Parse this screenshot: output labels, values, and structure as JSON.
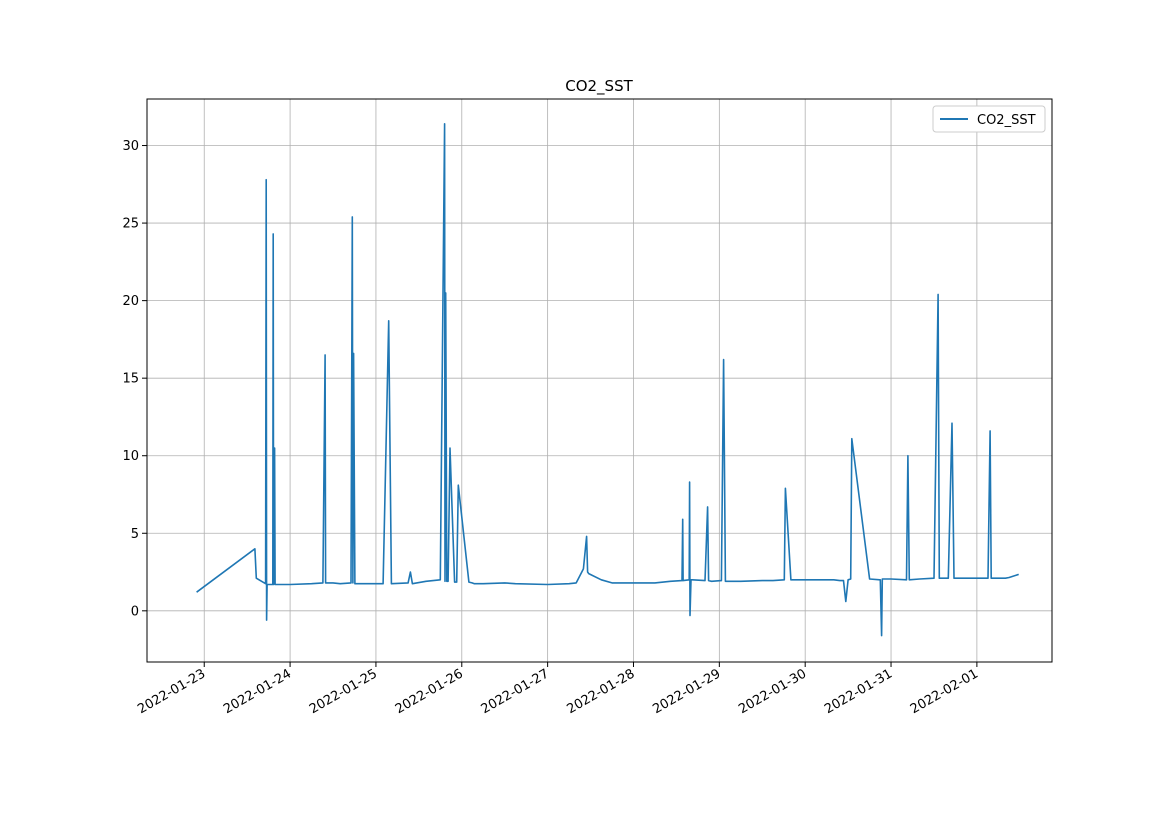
{
  "chart_data": {
    "type": "line",
    "title": "CO2_SST",
    "xlabel": "",
    "ylabel": "",
    "x_axis_type": "date",
    "xlim": [
      "2022-01-22T08:00",
      "2022-02-01T21:00"
    ],
    "ylim": [
      -3.3,
      33.0
    ],
    "x_ticks": [
      "2022-01-23",
      "2022-01-24",
      "2022-01-25",
      "2022-01-26",
      "2022-01-27",
      "2022-01-28",
      "2022-01-29",
      "2022-01-30",
      "2022-01-31",
      "2022-02-01"
    ],
    "y_ticks": [
      0,
      5,
      10,
      15,
      20,
      25,
      30
    ],
    "grid": true,
    "legend": {
      "position": "top-right",
      "entries": [
        "CO2_SST"
      ]
    },
    "series": [
      {
        "name": "CO2_SST",
        "color": "#1f77b4",
        "x": [
          "2022-01-22T21:52",
          "2022-01-23T14:10",
          "2022-01-23T14:34",
          "2022-01-23T17:10",
          "2022-01-23T17:19",
          "2022-01-23T17:26",
          "2022-01-23T17:34",
          "2022-01-23T19:10",
          "2022-01-23T19:17",
          "2022-01-23T19:24",
          "2022-01-23T19:41",
          "2022-01-23T19:48",
          "2022-01-23T19:55",
          "2022-01-24T00:00",
          "2022-01-24T06:00",
          "2022-01-24T09:10",
          "2022-01-24T09:48",
          "2022-01-24T09:55",
          "2022-01-24T10:38",
          "2022-01-24T12:00",
          "2022-01-24T14:00",
          "2022-01-24T17:02",
          "2022-01-24T17:24",
          "2022-01-24T17:34",
          "2022-01-24T17:46",
          "2022-01-24T18:07",
          "2022-01-24T22:00",
          "2022-01-25T02:00",
          "2022-01-25T03:34",
          "2022-01-25T04:19",
          "2022-01-25T09:00",
          "2022-01-25T09:38",
          "2022-01-25T10:12",
          "2022-01-25T14:00",
          "2022-01-25T18:00",
          "2022-01-25T19:12",
          "2022-01-25T19:19",
          "2022-01-25T19:31",
          "2022-01-25T19:48",
          "2022-01-25T20:00",
          "2022-01-25T20:10",
          "2022-01-25T20:43",
          "2022-01-25T22:00",
          "2022-01-25T22:34",
          "2022-01-25T23:02",
          "2022-01-26T02:00",
          "2022-01-26T02:53",
          "2022-01-26T03:31",
          "2022-01-26T06:00",
          "2022-01-26T12:00",
          "2022-01-26T15:00",
          "2022-01-27T00:00",
          "2022-01-27T06:00",
          "2022-01-27T08:00",
          "2022-01-27T10:00",
          "2022-01-27T10:53",
          "2022-01-27T11:10",
          "2022-01-27T11:29",
          "2022-01-27T15:00",
          "2022-01-27T18:00",
          "2022-01-27T21:31",
          "2022-01-28T06:00",
          "2022-01-28T10:19",
          "2022-01-28T13:34",
          "2022-01-28T13:46",
          "2022-01-28T13:53",
          "2022-01-28T15:34",
          "2022-01-28T15:41",
          "2022-01-28T15:48",
          "2022-01-28T16:05",
          "2022-01-28T16:29",
          "2022-01-28T20:00",
          "2022-01-28T20:43",
          "2022-01-28T21:00",
          "2022-01-28T21:50",
          "2022-01-29T00:34",
          "2022-01-29T01:12",
          "2022-01-29T01:41",
          "2022-01-29T06:00",
          "2022-01-29T12:00",
          "2022-01-29T15:00",
          "2022-01-29T18:10",
          "2022-01-29T18:29",
          "2022-01-29T20:00",
          "2022-01-30T00:00",
          "2022-01-30T06:00",
          "2022-01-30T08:00",
          "2022-01-30T09:41",
          "2022-01-30T10:43",
          "2022-01-30T11:22",
          "2022-01-30T12:00",
          "2022-01-30T12:43",
          "2022-01-30T13:02",
          "2022-01-30T18:00",
          "2022-01-30T20:53",
          "2022-01-30T21:00",
          "2022-01-30T21:22",
          "2022-01-30T21:34",
          "2022-01-31T00:00",
          "2022-01-31T04:19",
          "2022-01-31T04:43",
          "2022-01-31T05:07",
          "2022-01-31T08:00",
          "2022-01-31T12:00",
          "2022-01-31T13:10",
          "2022-01-31T13:29",
          "2022-01-31T13:48",
          "2022-01-31T16:00",
          "2022-01-31T17:02",
          "2022-01-31T17:36",
          "2022-01-31T20:00",
          "2022-02-01T02:00",
          "2022-02-01T03:07",
          "2022-02-01T03:41",
          "2022-02-01T04:00",
          "2022-02-01T08:00",
          "2022-02-01T09:00",
          "2022-02-01T11:41"
        ],
        "y": [
          1.2,
          4.0,
          2.1,
          1.75,
          27.8,
          -0.6,
          1.7,
          1.7,
          24.3,
          1.7,
          10.5,
          1.7,
          1.7,
          1.7,
          1.75,
          1.8,
          16.5,
          1.8,
          1.8,
          1.8,
          1.75,
          1.8,
          25.4,
          1.8,
          16.6,
          1.75,
          1.75,
          1.75,
          18.7,
          1.75,
          1.8,
          2.5,
          1.75,
          1.9,
          2.0,
          31.4,
          1.9,
          20.5,
          1.9,
          1.9,
          1.9,
          10.5,
          1.85,
          1.85,
          8.1,
          1.85,
          1.8,
          1.75,
          1.75,
          1.8,
          1.75,
          1.7,
          1.75,
          1.8,
          2.7,
          4.8,
          2.5,
          2.4,
          2.0,
          1.8,
          1.8,
          1.8,
          1.9,
          1.95,
          5.9,
          1.95,
          2.0,
          8.3,
          -0.3,
          2.0,
          2.0,
          1.95,
          6.7,
          1.95,
          1.9,
          1.95,
          16.2,
          1.9,
          1.9,
          1.95,
          1.95,
          2.0,
          7.9,
          2.0,
          2.0,
          2.0,
          2.0,
          1.95,
          1.95,
          0.6,
          2.0,
          2.05,
          11.1,
          2.05,
          2.0,
          2.0,
          -1.6,
          2.05,
          2.05,
          2.0,
          10.0,
          2.0,
          2.05,
          2.1,
          20.4,
          2.1,
          2.1,
          2.1,
          12.1,
          2.1,
          2.1,
          2.1,
          2.1,
          11.6,
          2.1,
          2.1,
          2.15,
          2.35
        ]
      }
    ]
  }
}
